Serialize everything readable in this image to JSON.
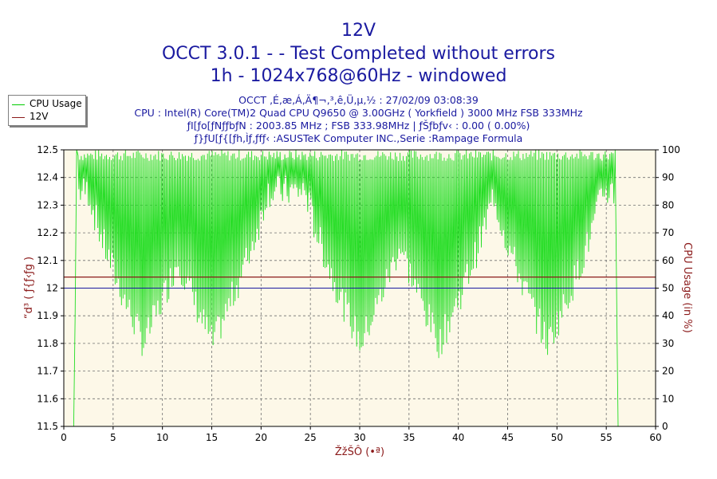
{
  "titles": {
    "line1": "12V",
    "line2": "OCCT 3.0.1 -  - Test Completed without errors",
    "line3": "1h - 1024x768@60Hz - windowed"
  },
  "info": {
    "line1": "OCCT ‚É‚æ‚Á‚Ä¶¬‚³‚ê‚Ü‚µ‚½ : 27/02/09 03:08:39",
    "line2": "CPU : Intel(R) Core(TM)2 Quad CPU Q9650 @ 3.00GHz ( Yorkfield ) 3000 MHz FSB 333MHz",
    "line3": "ƒI[ƒo[ƒNƒƒbƒN : 2003.85 MHz ; FSB 333.98MHz | ƒŠƒbƒv‹ : 0.00 ( 0.00%)",
    "line4": "ƒ}ƒU[ƒ{[ƒh‚Ìƒ‚ƒfƒ‹ :ASUSTeK Computer INC.,Serie :Rampage Formula"
  },
  "legend": {
    "items": [
      {
        "label": "CPU Usage",
        "color": "#00cc00"
      },
      {
        "label": "12V",
        "color": "#8b1a1a"
      }
    ]
  },
  "colors": {
    "plot_bg": "#fdf8e8",
    "grid": "#707070",
    "cpu_line": "#22dd22",
    "voltage_line": "#8b1a1a",
    "reference_line": "#1a1aa0",
    "left_axis_label": "#8b1a1a",
    "right_axis_label": "#8b1a1a",
    "x_axis_label": "#8b1a1a"
  },
  "chart_data": {
    "type": "line",
    "xlabel": "ŽžŠÔ (•ª)",
    "ylabel_left": "“d³ ( ƒ{ƒ‹ƒg )",
    "ylabel_right": "CPU Usage (in %)",
    "xlim": [
      0,
      60
    ],
    "ylim_left": [
      11.5,
      12.5
    ],
    "ylim_right": [
      0,
      100
    ],
    "x_ticks": [
      "0",
      "5",
      "10",
      "15",
      "20",
      "25",
      "30",
      "35",
      "40",
      "45",
      "50",
      "55",
      "60"
    ],
    "y_left_ticks": [
      "11.5",
      "11.6",
      "11.7",
      "11.8",
      "11.9",
      "12",
      "12.1",
      "12.2",
      "12.3",
      "12.4",
      "12.5"
    ],
    "y_right_ticks": [
      "0",
      "10",
      "20",
      "30",
      "40",
      "50",
      "60",
      "70",
      "80",
      "90",
      "100"
    ],
    "grid": true,
    "legend_position": "top-left",
    "series": [
      {
        "name": "12V",
        "axis": "left",
        "x": [
          0,
          60
        ],
        "values": [
          12.04,
          12.04
        ]
      },
      {
        "name": "CPU Usage",
        "axis": "right",
        "x_range": [
          1,
          56
        ],
        "pattern": "rapid oscillation between ~20 and ~100, lowest dips (~30) around minutes 8, 15, 30, 38, 49; near 0 at minutes 1 and 56"
      }
    ],
    "reference_line_left": 12.0
  }
}
